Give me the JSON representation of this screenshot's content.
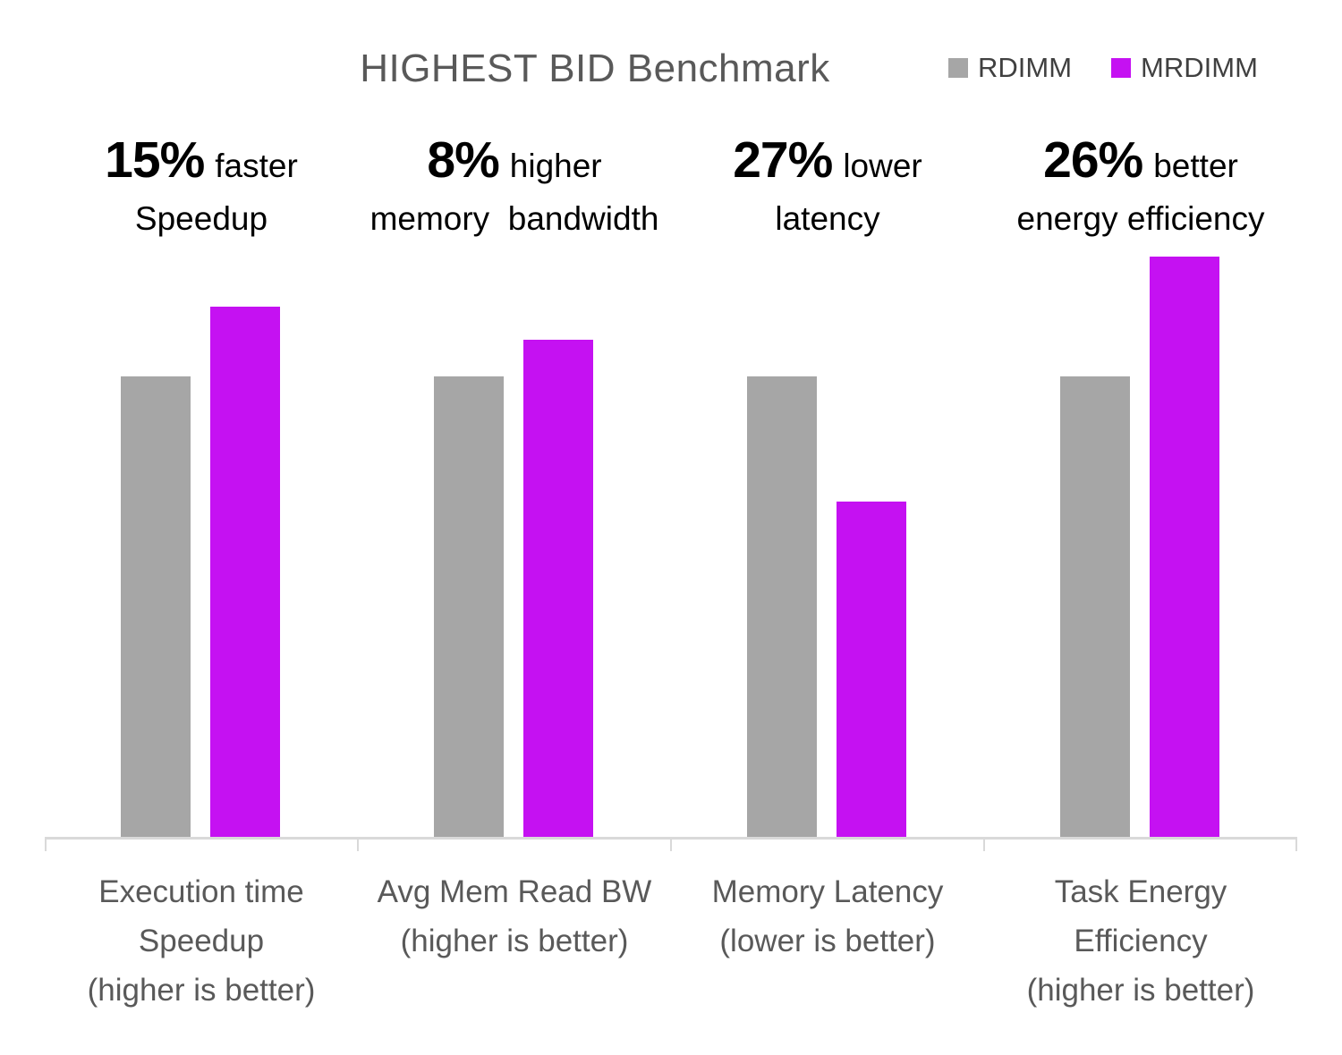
{
  "chart_data": {
    "type": "bar",
    "title": "HIGHEST BID Benchmark",
    "categories": [
      "Execution time Speedup (higher is better)",
      "Avg Mem Read BW (higher is better)",
      "Memory Latency (lower is better)",
      "Task Energy Efficiency (higher is better)"
    ],
    "series": [
      {
        "name": "RDIMM",
        "color": "#a6a6a6",
        "values": [
          1.0,
          1.0,
          1.0,
          1.0
        ]
      },
      {
        "name": "MRDIMM",
        "color": "#c511f2",
        "values": [
          1.15,
          1.08,
          0.73,
          1.26
        ]
      }
    ],
    "annotations": [
      "15% faster Speedup",
      "8% higher memory bandwidth",
      "27% lower latency",
      "26% better energy efficiency"
    ],
    "ylim": [
      0,
      1.35
    ],
    "grid": false,
    "legend_position": "top-right",
    "axis_color": "#d9d9d9",
    "title_color": "#595959",
    "annotation_color": "#000000"
  },
  "groups": [
    {
      "annotation": {
        "big": "15%",
        "rest": "faster",
        "line2": "Speedup"
      },
      "axis_label": {
        "line1": "Execution time",
        "line2": "Speedup",
        "line3": "(higher is better)"
      }
    },
    {
      "annotation": {
        "big": "8%",
        "rest": "higher",
        "line2": "memory  bandwidth"
      },
      "axis_label": {
        "line1": "Avg Mem Read BW",
        "line2": "(higher is better)",
        "line3": ""
      }
    },
    {
      "annotation": {
        "big": "27%",
        "rest": "lower",
        "line2": "latency"
      },
      "axis_label": {
        "line1": "Memory Latency",
        "line2": "(lower is better)",
        "line3": ""
      }
    },
    {
      "annotation": {
        "big": "26%",
        "rest": "better",
        "line2": "energy efficiency"
      },
      "axis_label": {
        "line1": "Task Energy",
        "line2": "Efficiency",
        "line3": "(higher is better)"
      }
    }
  ]
}
